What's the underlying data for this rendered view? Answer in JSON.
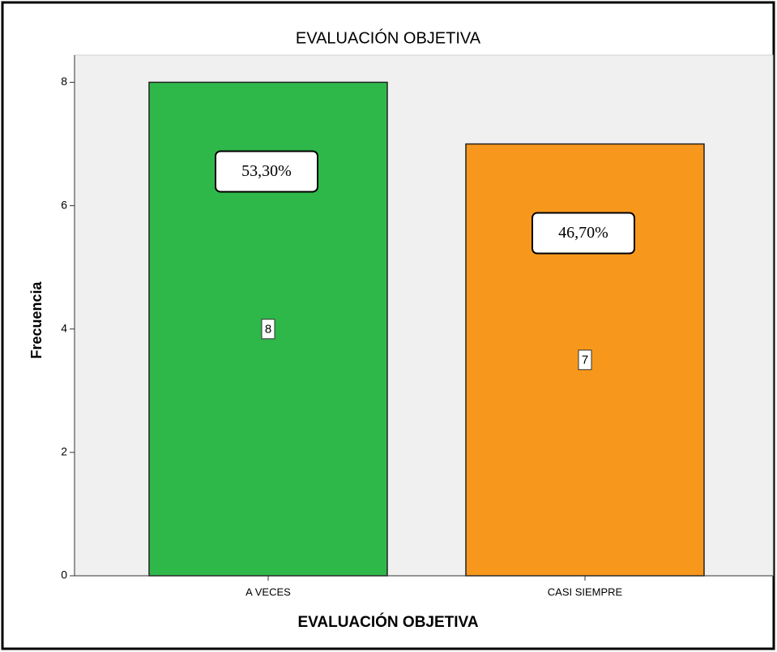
{
  "chart_data": {
    "type": "bar",
    "title": "EVALUACIÓN OBJETIVA",
    "x_label": "EVALUACIÓN OBJETIVA",
    "y_label": "Frecuencia",
    "categories": [
      "A VECES",
      "CASI SIEMPRE"
    ],
    "values": [
      8,
      7
    ],
    "colors": [
      "#2fb84a",
      "#f7981d"
    ],
    "percent_labels": [
      "53,30%",
      "46,70%"
    ],
    "ylim": [
      0,
      8.44
    ],
    "yticks": [
      0,
      2,
      4,
      6,
      8
    ]
  }
}
